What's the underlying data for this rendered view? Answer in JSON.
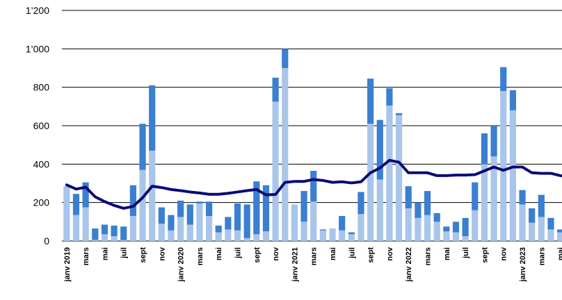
{
  "chart_data": {
    "type": "bar",
    "stacked": true,
    "ylim": [
      0,
      1200
    ],
    "yticks": [
      0,
      200,
      400,
      600,
      800,
      1000,
      1200
    ],
    "ytick_labels": [
      "0",
      "200",
      "400",
      "600",
      "800",
      "1’000",
      "1’200"
    ],
    "grid": true,
    "categories": [
      "janv 2019",
      "févr 2019",
      "mars 2019",
      "avr 2019",
      "mai 2019",
      "juin 2019",
      "juil 2019",
      "août 2019",
      "sept 2019",
      "oct 2019",
      "nov 2019",
      "déc 2019",
      "janv 2020",
      "févr 2020",
      "mars 2020",
      "avr 2020",
      "mai 2020",
      "juin 2020",
      "juil 2020",
      "août 2020",
      "sept 2020",
      "oct 2020",
      "nov 2020",
      "déc 2020",
      "janv 2021",
      "févr 2021",
      "mars 2021",
      "avr 2021",
      "mai 2021",
      "juin 2021",
      "juil 2021",
      "août 2021",
      "sept 2021",
      "oct 2021",
      "nov 2021",
      "déc 2021",
      "janv 2022",
      "févr 2022",
      "mars 2022",
      "avr 2022",
      "mai 2022",
      "juin 2022",
      "juil 2022",
      "août 2022",
      "sept 2022",
      "oct 2022",
      "nov 2022",
      "déc 2022",
      "janv 2023",
      "févr 2023",
      "mars 2023",
      "avr 2023",
      "mai 2023",
      "juin 2023"
    ],
    "x_tick_labels": [
      "janv 2019",
      "",
      "mars",
      "",
      "mai",
      "",
      "juil",
      "",
      "sept",
      "",
      "nov",
      "",
      "janv 2020",
      "",
      "mars",
      "",
      "mai",
      "",
      "juil",
      "",
      "sept",
      "",
      "nov",
      "",
      "janv 2021",
      "",
      "mars",
      "",
      "mai",
      "",
      "juil",
      "",
      "sept",
      "",
      "nov",
      "",
      "janv 2022",
      "",
      "mars",
      "",
      "mai",
      "",
      "juil",
      "",
      "sept",
      "",
      "nov",
      "",
      "janv 2023",
      "",
      "mars",
      "",
      "mai",
      ""
    ],
    "series": [
      {
        "type": "bar",
        "color": "#a9c5ea",
        "values": [
          285,
          135,
          175,
          5,
          35,
          25,
          5,
          130,
          370,
          470,
          90,
          55,
          125,
          85,
          195,
          130,
          45,
          60,
          55,
          15,
          35,
          50,
          725,
          900,
          190,
          100,
          205,
          55,
          65,
          55,
          35,
          140,
          610,
          320,
          705,
          655,
          170,
          120,
          135,
          100,
          50,
          45,
          25,
          160,
          400,
          440,
          780,
          680,
          190,
          95,
          125,
          60,
          45,
          40
        ]
      },
      {
        "type": "bar",
        "color": "#3a7fd0",
        "values": [
          0,
          110,
          130,
          60,
          50,
          55,
          70,
          160,
          240,
          340,
          85,
          80,
          85,
          105,
          10,
          75,
          35,
          65,
          140,
          175,
          275,
          240,
          125,
          100,
          0,
          160,
          160,
          5,
          0,
          75,
          10,
          115,
          235,
          310,
          90,
          10,
          115,
          80,
          125,
          45,
          25,
          55,
          95,
          145,
          160,
          160,
          125,
          105,
          75,
          75,
          115,
          60,
          15,
          40
        ]
      },
      {
        "type": "line",
        "color": "#0a0a78",
        "values": [
          292,
          270,
          280,
          230,
          205,
          185,
          170,
          180,
          225,
          285,
          278,
          268,
          262,
          255,
          250,
          243,
          243,
          248,
          255,
          262,
          268,
          240,
          242,
          305,
          310,
          310,
          320,
          315,
          305,
          308,
          302,
          308,
          355,
          380,
          420,
          410,
          355,
          355,
          355,
          340,
          340,
          343,
          343,
          345,
          365,
          385,
          368,
          385,
          385,
          355,
          352,
          352,
          340,
          335
        ]
      }
    ]
  }
}
